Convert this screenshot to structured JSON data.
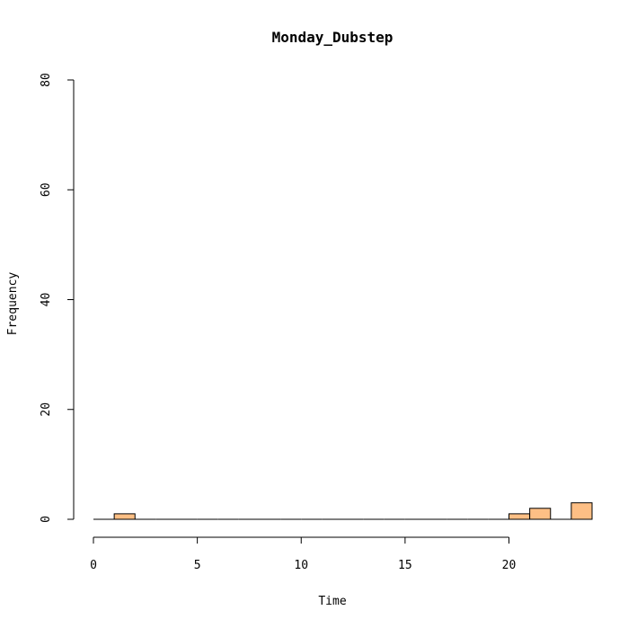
{
  "chart_data": {
    "type": "bar",
    "title": "Monday_Dubstep",
    "xlabel": "Time",
    "ylabel": "Frequency",
    "xlim": [
      0,
      24
    ],
    "ylim": [
      0,
      80
    ],
    "xticks": [
      0,
      5,
      10,
      15,
      20
    ],
    "yticks": [
      0,
      20,
      40,
      60,
      80
    ],
    "bar_color": "#FDBF85",
    "bins": [
      {
        "x0": 0,
        "x1": 1,
        "value": 0
      },
      {
        "x0": 1,
        "x1": 2,
        "value": 1
      },
      {
        "x0": 2,
        "x1": 3,
        "value": 0
      },
      {
        "x0": 3,
        "x1": 4,
        "value": 0
      },
      {
        "x0": 4,
        "x1": 5,
        "value": 0
      },
      {
        "x0": 5,
        "x1": 6,
        "value": 0
      },
      {
        "x0": 6,
        "x1": 7,
        "value": 0
      },
      {
        "x0": 7,
        "x1": 8,
        "value": 0
      },
      {
        "x0": 8,
        "x1": 9,
        "value": 0
      },
      {
        "x0": 9,
        "x1": 10,
        "value": 0
      },
      {
        "x0": 10,
        "x1": 11,
        "value": 0
      },
      {
        "x0": 11,
        "x1": 12,
        "value": 0
      },
      {
        "x0": 12,
        "x1": 13,
        "value": 0
      },
      {
        "x0": 13,
        "x1": 14,
        "value": 0
      },
      {
        "x0": 14,
        "x1": 15,
        "value": 0
      },
      {
        "x0": 15,
        "x1": 16,
        "value": 0
      },
      {
        "x0": 16,
        "x1": 17,
        "value": 0
      },
      {
        "x0": 17,
        "x1": 18,
        "value": 0
      },
      {
        "x0": 18,
        "x1": 19,
        "value": 0
      },
      {
        "x0": 19,
        "x1": 20,
        "value": 0
      },
      {
        "x0": 20,
        "x1": 21,
        "value": 1
      },
      {
        "x0": 21,
        "x1": 22,
        "value": 2
      },
      {
        "x0": 22,
        "x1": 23,
        "value": 0
      },
      {
        "x0": 23,
        "x1": 24,
        "value": 3
      }
    ]
  }
}
